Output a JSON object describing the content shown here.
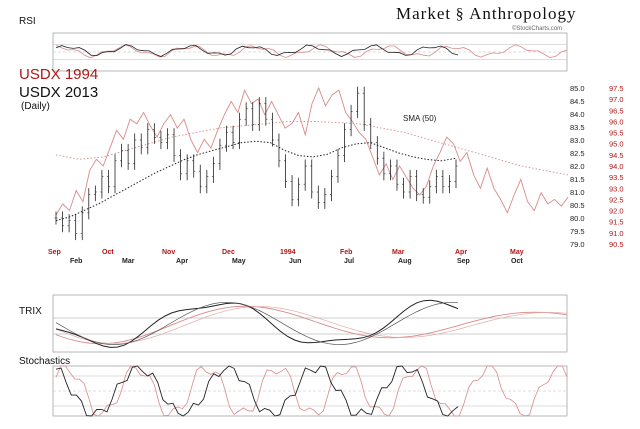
{
  "brand": {
    "left": "Market",
    "right": "Anthropology",
    "site": "©StockCharts.com"
  },
  "titles": {
    "usdx_1994": "USDX 1994",
    "usdx_2013": "USDX 2013",
    "period": "(Daily)"
  },
  "panels": {
    "rsi": "RSI",
    "trix": "TRIX",
    "stochastics": "Stochastics"
  },
  "colors": {
    "usdx_1994": "#d98a8a",
    "usdx_2013": "#222222",
    "label_red": "#b01818",
    "sma": "#444444",
    "grid": "#bbbbbb"
  },
  "chart_data": {
    "type": "line",
    "subtitle": "(Daily)",
    "x_top": [
      "Feb",
      "Mar",
      "Apr",
      "May",
      "Jun",
      "Jul",
      "Aug",
      "Sep",
      "Oct"
    ],
    "x_bottom": [
      "Sep",
      "Oct",
      "Nov",
      "Dec",
      "1994",
      "Feb",
      "Mar",
      "Apr",
      "May"
    ],
    "y_right_2013": [
      79.0,
      79.5,
      80.0,
      80.5,
      81.0,
      81.5,
      82.0,
      82.5,
      83.0,
      83.5,
      84.0,
      84.5,
      85.0
    ],
    "y_right_1994": [
      90.5,
      91.0,
      91.5,
      92.0,
      92.5,
      93.0,
      93.5,
      94.0,
      94.5,
      95.0,
      95.5,
      96.0,
      96.5,
      97.0,
      97.5
    ],
    "ylim_2013": [
      79.0,
      85.0
    ],
    "ylim_1994": [
      90.5,
      97.5
    ],
    "annotation": "SMA (50)",
    "series": [
      {
        "key": "usdx_1994",
        "values": [
          91.8,
          92.3,
          92.0,
          92.9,
          92.4,
          93.8,
          94.3,
          94.0,
          94.8,
          95.6,
          95.2,
          96.1,
          95.9,
          96.4,
          95.8,
          95.3,
          95.9,
          96.3,
          95.7,
          96.1,
          95.2,
          94.6,
          95.2,
          94.8,
          95.6,
          96.3,
          96.9,
          96.4,
          97.4,
          96.8,
          97.0,
          96.3,
          96.9,
          96.3,
          95.7,
          95.9,
          96.4,
          95.4,
          96.8,
          97.5,
          96.7,
          97.2,
          97.4,
          96.4,
          96.0,
          95.5,
          95.2,
          94.4,
          93.6,
          94.1,
          93.4,
          94.0,
          93.5,
          93.0,
          92.7,
          93.1,
          94.0,
          94.6,
          95.3,
          95.0,
          94.2,
          94.6,
          93.6,
          93.0,
          93.9,
          93.0,
          92.5,
          91.9,
          92.7,
          93.4,
          92.4,
          92.0,
          92.8,
          92.3,
          92.5,
          92.2,
          92.6
        ]
      },
      {
        "key": "usdx_2013",
        "values": [
          80.0,
          79.7,
          79.9,
          79.4,
          80.2,
          80.9,
          81.0,
          81.6,
          81.2,
          82.2,
          82.6,
          82.1,
          83.0,
          82.7,
          83.4,
          83.1,
          82.9,
          83.2,
          82.4,
          81.7,
          82.2,
          81.8,
          81.2,
          81.6,
          82.1,
          82.8,
          83.3,
          82.9,
          83.8,
          84.2,
          83.6,
          84.4,
          83.8,
          83.0,
          82.2,
          81.4,
          80.7,
          81.3,
          82.0,
          81.0,
          80.6,
          80.9,
          81.6,
          82.4,
          83.4,
          84.1,
          84.8,
          83.6,
          82.9,
          82.3,
          81.7,
          82.0,
          81.3,
          81.0,
          81.6,
          80.9,
          80.8,
          81.2,
          81.6,
          81.2,
          81.4,
          82.0
        ]
      },
      {
        "key": "sma_2013",
        "values": [
          79.9,
          80.05,
          80.3,
          80.55,
          80.85,
          81.15,
          81.45,
          81.75,
          82.0,
          82.25,
          82.45,
          82.6,
          82.75,
          82.9,
          82.95,
          82.9,
          82.6,
          82.4,
          82.35,
          82.45,
          82.7,
          82.85,
          82.9,
          82.7,
          82.5,
          82.35,
          82.25,
          82.2,
          82.3
        ]
      },
      {
        "key": "sma_1994",
        "values": [
          94.5,
          94.3,
          94.4,
          94.7,
          95.0,
          95.3,
          95.5,
          95.7,
          95.8,
          95.9,
          96.0,
          96.0,
          95.95,
          95.9,
          95.7,
          95.5,
          95.2,
          94.9,
          94.6,
          94.3,
          94.0,
          93.8,
          93.6
        ]
      }
    ],
    "rsi_lines": [
      70,
      50,
      30
    ],
    "stoch_lines": [
      80,
      50,
      20
    ]
  }
}
